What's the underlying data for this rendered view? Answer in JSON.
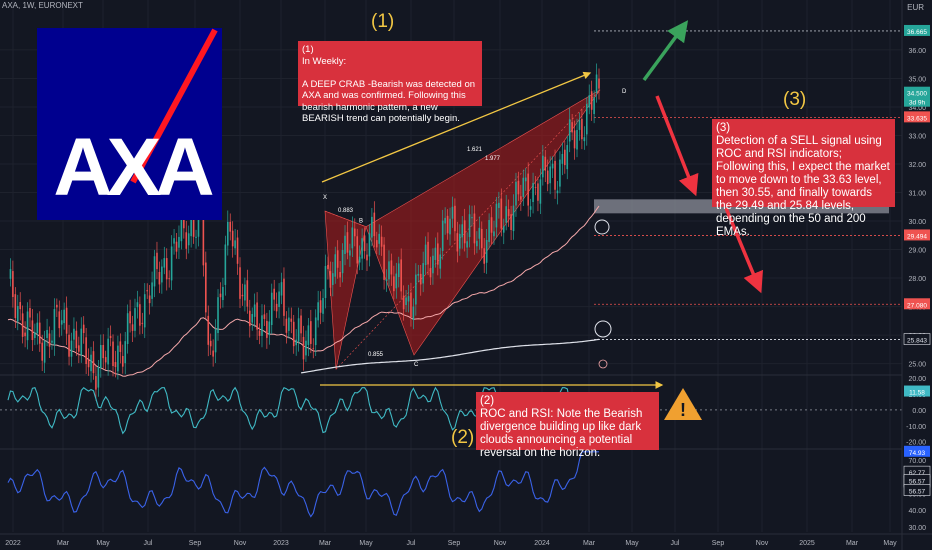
{
  "header": {
    "symbol": "AXA, 1W, EURONEXT",
    "currency": "EUR"
  },
  "colors": {
    "bg": "#131722",
    "up": "#26a69a",
    "down": "#ef5350",
    "axa_blue": "#00008f",
    "axa_red": "#ff1721",
    "note_red": "#d8313d",
    "label_gold": "#f2c744",
    "roc_line": "#3fb9c4",
    "rsi_line": "#3a62e8",
    "arrow_green": "#3aa35c",
    "arrow_red": "#ef3340"
  },
  "logo": {
    "text": "AXA"
  },
  "annotations": {
    "num1": "(1)",
    "num2": "(2)",
    "num3": "(3)",
    "note1": "(1)\nIn Weekly:\n\nA DEEP CRAB -Bearish was detected on AXA and was confirmed. Following this bearish harmonic pattern, a new BEARISH trend can potentially begin.",
    "note2": "(2)\nROC and RSI: Note the Bearish divergence building up like dark clouds announcing a potential reversal on the horizon.",
    "note3": "(3)\nDetection of a SELL signal using ROC and RSI indicators;\nFollowing this, I expect the market to move down to the 33.63 level, then 30.55, and finally towards the 29.49 and 25.84 levels, depending on the 50 and 200 EMAs.",
    "warning_icon": "warning-triangle-icon"
  },
  "pattern": {
    "points": [
      "X",
      "B",
      "C",
      "D"
    ],
    "ratios": [
      "0.883",
      "1.621",
      "1.977",
      "0.855"
    ]
  },
  "price_labels": [
    {
      "value": "36.665",
      "color": "#26a69a"
    },
    {
      "value": "34.500",
      "color": "#26a69a"
    },
    {
      "value": "3d 9h",
      "color": "#26a69a"
    },
    {
      "value": "33.635",
      "color": "#ef5350"
    },
    {
      "value": "29.494",
      "color": "#ef5350"
    },
    {
      "value": "27.080",
      "color": "#ef5350"
    },
    {
      "value": "25.843",
      "color": "#131722"
    }
  ],
  "roc_labels": [
    {
      "value": "11.58",
      "color": "#3fb9c4"
    }
  ],
  "rsi_labels": [
    {
      "value": "74.93",
      "color": "#2962ff"
    },
    {
      "value": "62.77",
      "color": "#131722"
    },
    {
      "value": "62.77",
      "color": "#131722"
    },
    {
      "value": "56.57",
      "color": "#131722"
    },
    {
      "value": "56.57",
      "color": "#131722"
    }
  ],
  "chart_data": [
    {
      "type": "candlestick",
      "title": "AXA, 1W, EURONEXT",
      "x_ticks": [
        "2022",
        "Mar",
        "May",
        "Jul",
        "Sep",
        "Nov",
        "2023",
        "Mar",
        "May",
        "Jul",
        "Sep",
        "Nov",
        "2024",
        "Mar",
        "May",
        "Jul",
        "Sep",
        "Nov",
        "2025",
        "Mar",
        "May"
      ],
      "y_ticks": [
        25.0,
        26.0,
        27.0,
        28.0,
        29.0,
        30.0,
        31.0,
        32.0,
        33.0,
        34.0,
        35.0,
        36.0
      ],
      "ylim": [
        24.6,
        37.4
      ],
      "levels": [
        36.665,
        33.635,
        30.55,
        29.494,
        27.08,
        25.843
      ],
      "last": 34.5,
      "pattern_points": [
        {
          "label": "X",
          "date": "2023-02",
          "price": 30.35
        },
        {
          "label": "A",
          "date": "2023-03",
          "price": 24.8
        },
        {
          "label": "B",
          "date": "2023-04",
          "price": 29.8
        },
        {
          "label": "C",
          "date": "2023-07",
          "price": 25.3
        },
        {
          "label": "D",
          "date": "2024-03",
          "price": 34.6
        }
      ]
    },
    {
      "type": "line",
      "title": "ROC",
      "y_ticks": [
        20.0,
        10.0,
        0.0,
        -10.0,
        -20.0
      ],
      "ylim": [
        -24,
        22
      ],
      "last": 11.58
    },
    {
      "type": "line",
      "title": "RSI",
      "y_ticks": [
        70.0,
        60.0,
        50.0,
        40.0,
        30.0
      ],
      "ylim": [
        27,
        76
      ],
      "last": 74.93
    }
  ]
}
